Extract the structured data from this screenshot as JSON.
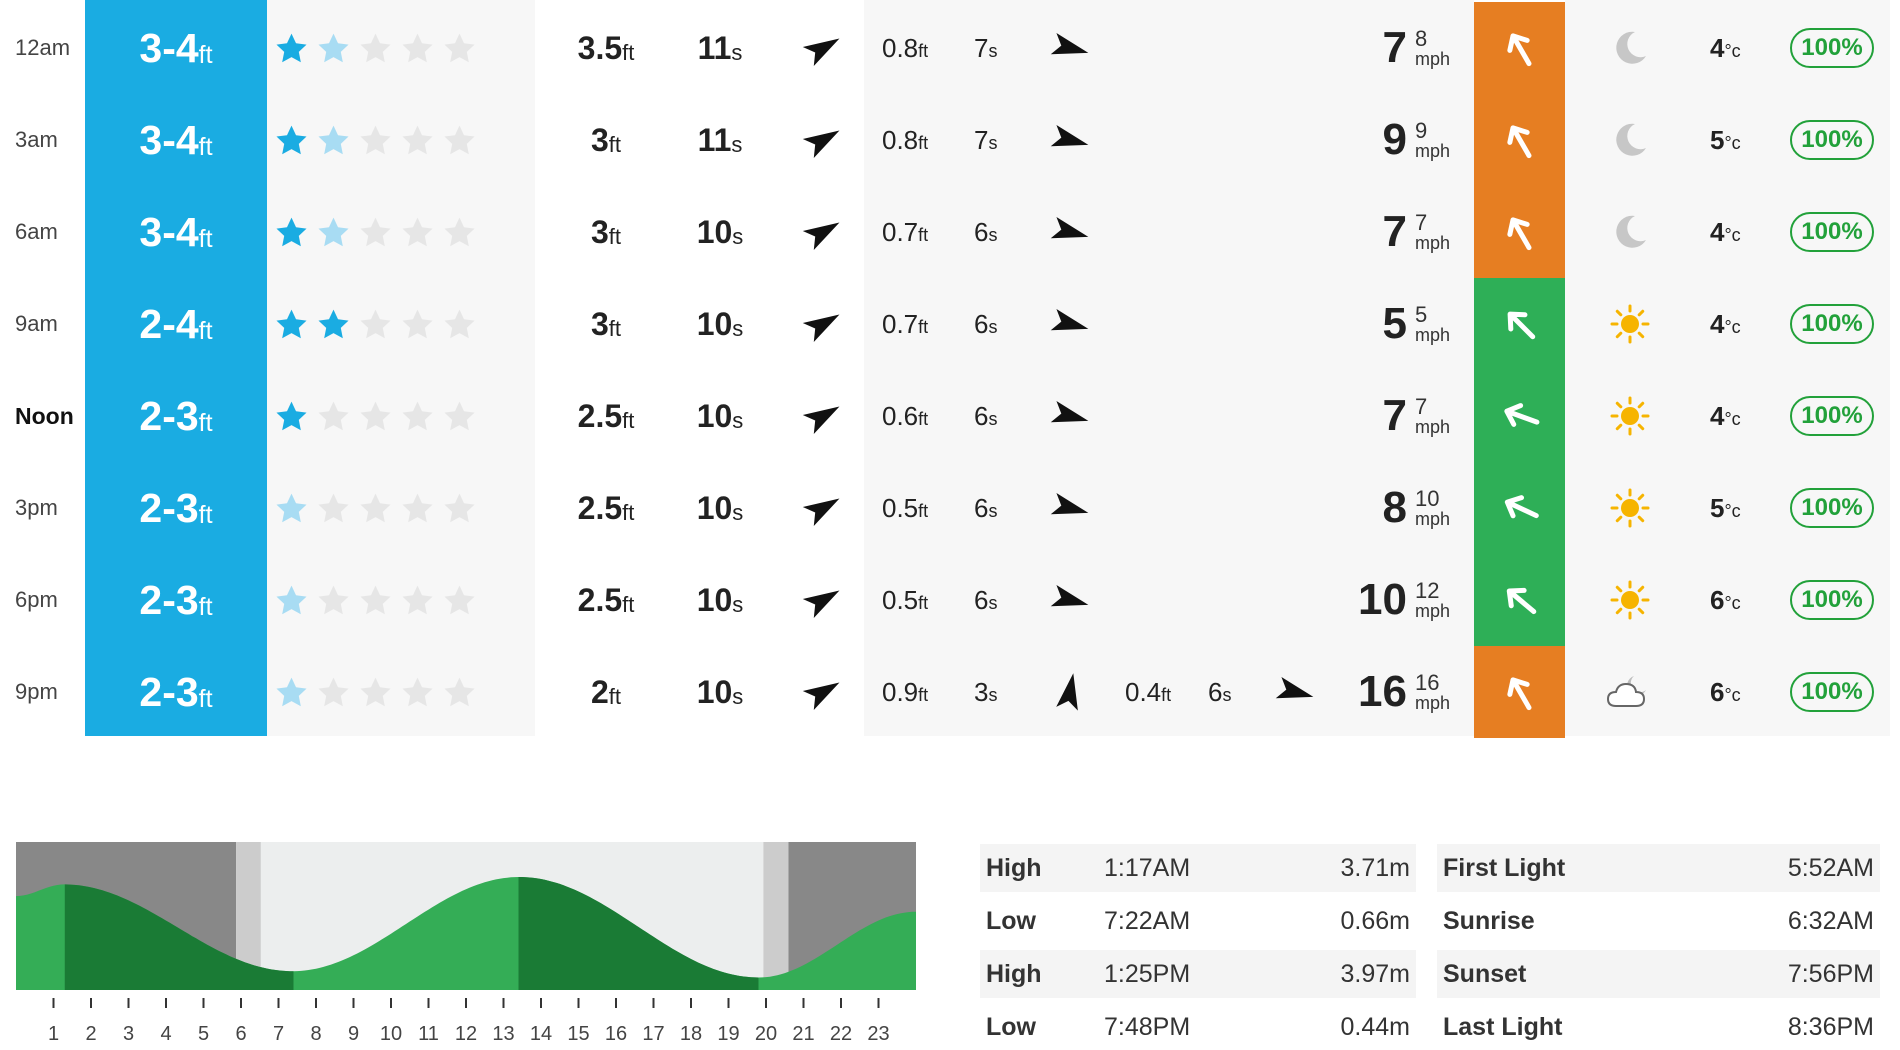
{
  "colors": {
    "surf_blue": "#1aace2",
    "star_full": "#1aace2",
    "star_faded": "#a8dcf3",
    "star_empty": "#e6e6e6",
    "wind_offshore": "#e67e22",
    "wind_cross": "#2eaf57",
    "probability_green": "#22a13a",
    "tide_green_light": "#34ad56",
    "tide_green_dark": "#1a7b35",
    "night_grey": "#888888",
    "twilight_grey": "#cccccc",
    "day_grey": "#eceeee"
  },
  "forecast": {
    "rows": [
      {
        "time": "12am",
        "bold": false,
        "surf": "3-4",
        "surf_unit": "ft",
        "stars": [
          "full",
          "faded",
          "empty",
          "empty",
          "empty"
        ],
        "swell1_height": "3.5",
        "swell1_period": "11",
        "swell1_dir_deg": 60,
        "swell2_height": "0.8",
        "swell2_period": "7",
        "swell2_dir_deg": 105,
        "swell3_height": "",
        "swell3_period": "",
        "swell3_dir_deg": null,
        "wind_speed": "7",
        "wind_gust": "8",
        "wind_unit": "mph",
        "wind_color": "orange",
        "wind_dir_deg": 150,
        "weather": "moon",
        "temp": "4",
        "temp_unit": "°c",
        "prob": "100%"
      },
      {
        "time": "3am",
        "bold": false,
        "surf": "3-4",
        "surf_unit": "ft",
        "stars": [
          "full",
          "faded",
          "empty",
          "empty",
          "empty"
        ],
        "swell1_height": "3",
        "swell1_period": "11",
        "swell1_dir_deg": 60,
        "swell2_height": "0.8",
        "swell2_period": "7",
        "swell2_dir_deg": 105,
        "swell3_height": "",
        "swell3_period": "",
        "swell3_dir_deg": null,
        "wind_speed": "9",
        "wind_gust": "9",
        "wind_unit": "mph",
        "wind_color": "orange",
        "wind_dir_deg": 150,
        "weather": "moon",
        "temp": "5",
        "temp_unit": "°c",
        "prob": "100%"
      },
      {
        "time": "6am",
        "bold": false,
        "surf": "3-4",
        "surf_unit": "ft",
        "stars": [
          "full",
          "faded",
          "empty",
          "empty",
          "empty"
        ],
        "swell1_height": "3",
        "swell1_period": "10",
        "swell1_dir_deg": 60,
        "swell2_height": "0.7",
        "swell2_period": "6",
        "swell2_dir_deg": 105,
        "swell3_height": "",
        "swell3_period": "",
        "swell3_dir_deg": null,
        "wind_speed": "7",
        "wind_gust": "7",
        "wind_unit": "mph",
        "wind_color": "orange",
        "wind_dir_deg": 150,
        "weather": "moon",
        "temp": "4",
        "temp_unit": "°c",
        "prob": "100%"
      },
      {
        "time": "9am",
        "bold": false,
        "surf": "2-4",
        "surf_unit": "ft",
        "stars": [
          "full",
          "full",
          "empty",
          "empty",
          "empty"
        ],
        "swell1_height": "3",
        "swell1_period": "10",
        "swell1_dir_deg": 60,
        "swell2_height": "0.7",
        "swell2_period": "6",
        "swell2_dir_deg": 105,
        "swell3_height": "",
        "swell3_period": "",
        "swell3_dir_deg": null,
        "wind_speed": "5",
        "wind_gust": "5",
        "wind_unit": "mph",
        "wind_color": "green",
        "wind_dir_deg": 135,
        "weather": "sun",
        "temp": "4",
        "temp_unit": "°c",
        "prob": "100%"
      },
      {
        "time": "Noon",
        "bold": true,
        "surf": "2-3",
        "surf_unit": "ft",
        "stars": [
          "full",
          "empty",
          "empty",
          "empty",
          "empty"
        ],
        "swell1_height": "2.5",
        "swell1_period": "10",
        "swell1_dir_deg": 60,
        "swell2_height": "0.6",
        "swell2_period": "6",
        "swell2_dir_deg": 105,
        "swell3_height": "",
        "swell3_period": "",
        "swell3_dir_deg": null,
        "wind_speed": "7",
        "wind_gust": "7",
        "wind_unit": "mph",
        "wind_color": "green",
        "wind_dir_deg": 110,
        "weather": "sun",
        "temp": "4",
        "temp_unit": "°c",
        "prob": "100%"
      },
      {
        "time": "3pm",
        "bold": false,
        "surf": "2-3",
        "surf_unit": "ft",
        "stars": [
          "faded",
          "empty",
          "empty",
          "empty",
          "empty"
        ],
        "swell1_height": "2.5",
        "swell1_period": "10",
        "swell1_dir_deg": 60,
        "swell2_height": "0.5",
        "swell2_period": "6",
        "swell2_dir_deg": 105,
        "swell3_height": "",
        "swell3_period": "",
        "swell3_dir_deg": null,
        "wind_speed": "8",
        "wind_gust": "10",
        "wind_unit": "mph",
        "wind_color": "green",
        "wind_dir_deg": 115,
        "weather": "sun",
        "temp": "5",
        "temp_unit": "°c",
        "prob": "100%"
      },
      {
        "time": "6pm",
        "bold": false,
        "surf": "2-3",
        "surf_unit": "ft",
        "stars": [
          "faded",
          "empty",
          "empty",
          "empty",
          "empty"
        ],
        "swell1_height": "2.5",
        "swell1_period": "10",
        "swell1_dir_deg": 60,
        "swell2_height": "0.5",
        "swell2_period": "6",
        "swell2_dir_deg": 105,
        "swell3_height": "",
        "swell3_period": "",
        "swell3_dir_deg": null,
        "wind_speed": "10",
        "wind_gust": "12",
        "wind_unit": "mph",
        "wind_color": "green",
        "wind_dir_deg": 130,
        "weather": "sun",
        "temp": "6",
        "temp_unit": "°c",
        "prob": "100%"
      },
      {
        "time": "9pm",
        "bold": false,
        "surf": "2-3",
        "surf_unit": "ft",
        "stars": [
          "faded",
          "empty",
          "empty",
          "empty",
          "empty"
        ],
        "swell1_height": "2",
        "swell1_period": "10",
        "swell1_dir_deg": 60,
        "swell2_height": "0.9",
        "swell2_period": "3",
        "swell2_dir_deg": 10,
        "swell3_height": "0.4",
        "swell3_period": "6",
        "swell3_dir_deg": 105,
        "wind_speed": "16",
        "wind_gust": "16",
        "wind_unit": "mph",
        "wind_color": "orange",
        "wind_dir_deg": 150,
        "weather": "cloud-moon",
        "temp": "6",
        "temp_unit": "°c",
        "prob": "100%"
      }
    ]
  },
  "tide_chart": {
    "hours": [
      "1",
      "2",
      "3",
      "4",
      "5",
      "6",
      "7",
      "8",
      "9",
      "10",
      "11",
      "12",
      "13",
      "14",
      "15",
      "16",
      "17",
      "18",
      "19",
      "20",
      "21",
      "22",
      "23"
    ],
    "heights_m": [
      {
        "time_h": 0,
        "h": 3.3
      },
      {
        "time_h": 1.28,
        "h": 3.71
      },
      {
        "time_h": 7.37,
        "h": 0.66
      },
      {
        "time_h": 13.42,
        "h": 3.97
      },
      {
        "time_h": 19.8,
        "h": 0.44
      },
      {
        "time_h": 24,
        "h": 2.75
      }
    ],
    "first_light_h": 5.87,
    "sunrise_h": 6.53,
    "sunset_h": 19.93,
    "last_light_h": 20.6,
    "dark_band_hours": [
      [
        1.3,
        7.4
      ],
      [
        13.4,
        19.8
      ]
    ]
  },
  "tides": [
    {
      "type": "High",
      "time": "1:17AM",
      "height": "3.71m"
    },
    {
      "type": "Low",
      "time": "7:22AM",
      "height": "0.66m"
    },
    {
      "type": "High",
      "time": "1:25PM",
      "height": "3.97m"
    },
    {
      "type": "Low",
      "time": "7:48PM",
      "height": "0.44m"
    }
  ],
  "light": [
    {
      "name": "First Light",
      "time": "5:52AM"
    },
    {
      "name": "Sunrise",
      "time": "6:32AM"
    },
    {
      "name": "Sunset",
      "time": "7:56PM"
    },
    {
      "name": "Last Light",
      "time": "8:36PM"
    }
  ]
}
